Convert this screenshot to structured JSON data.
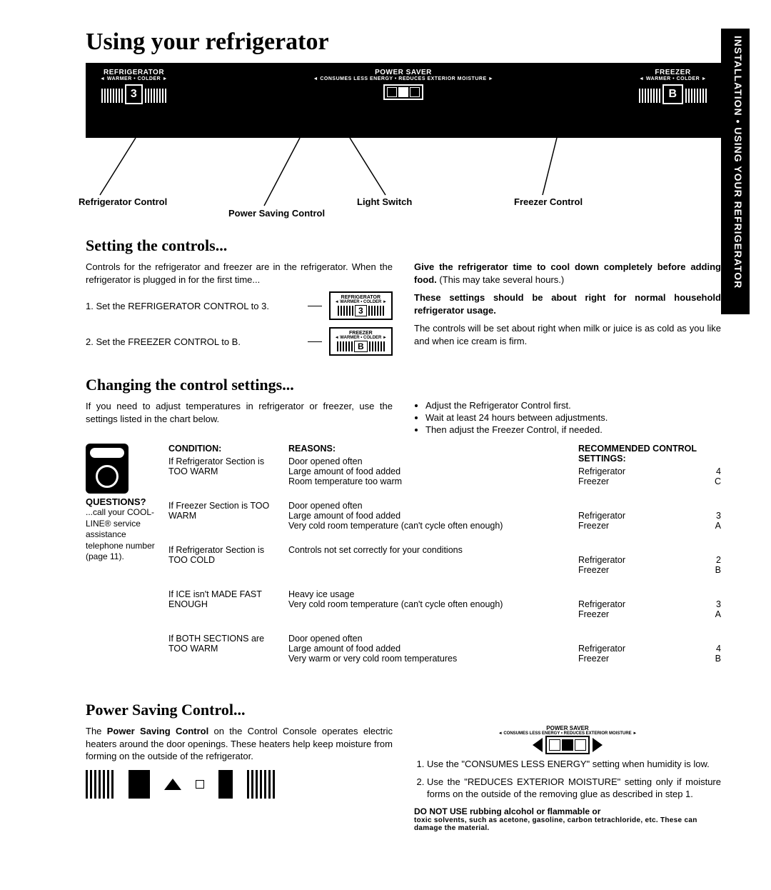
{
  "sideTab": "INSTALLATION • USING YOUR REFRIGERATOR",
  "title": "Using your refrigerator",
  "panel": {
    "refrig": {
      "main": "REFRIGERATOR",
      "sub": "◄ WARMER  •  COLDER ►",
      "num": "3"
    },
    "power": {
      "main": "POWER  SAVER",
      "sub": "◄ CONSUMES LESS ENERGY  •  REDUCES EXTERIOR MOISTURE ►"
    },
    "freezer": {
      "main": "FREEZER",
      "sub": "◄ WARMER  •  COLDER ►",
      "num": "B"
    }
  },
  "callouts": {
    "refrig": "Refrigerator Control",
    "power": "Power Saving Control",
    "light": "Light Switch",
    "freezer": "Freezer Control"
  },
  "setting": {
    "heading": "Setting the controls...",
    "intro": "Controls for the refrigerator and freezer are in the refrigerator. When the refrigerator is plugged in for the first time...",
    "step1": "1. Set the REFRIGERA­TOR CONTROL to 3.",
    "step2": "2. Set the FREEZER CONTROL to B.",
    "mini1": {
      "label": "REFRIGERATOR",
      "sub": "◄ WARMER • COLDER ►",
      "num": "3"
    },
    "mini2": {
      "label": "FREEZER",
      "sub": "◄ WARMER • COLDER ►",
      "num": "B"
    },
    "right1": "Give the refrigerator time to cool down com­pletely before adding food. (This may take sev­eral hours.)",
    "right2": "These settings should be about right for normal household refrigerator usage.",
    "right3": "The controls will be set about right when milk or juice is as cold as you like and when ice cream is firm."
  },
  "changing": {
    "heading": "Changing the control settings...",
    "intro": "If you need to adjust temperatures in refrigerator or freezer, use the settings listed in the chart below.",
    "bullets": [
      "Adjust the Refrigerator Control first.",
      "Wait at least 24 hours between adjustments.",
      "Then adjust the Freezer Control, if needed."
    ]
  },
  "chart": {
    "headCondition": "CONDITION:",
    "headReasons": "REASONS:",
    "headRec": "RECOMMENDED CONTROL SETTINGS:",
    "questionsHead": "QUESTIONS?",
    "questionsBody": "...call your COOL-LINE® service assistance telephone number (page 11).",
    "rows": [
      {
        "cond": "If Refrigerator Section is TOO WARM",
        "reason": "Door opened often\nLarge amount of food added\nRoom temperature too warm",
        "ref": "4",
        "frz": "C"
      },
      {
        "cond": "If Freezer Section is TOO WARM",
        "reason": "Door opened often\nLarge amount of food added\nVery cold room temperature (can't cycle often enough)",
        "ref": "3",
        "frz": "A"
      },
      {
        "cond": "If Refrigerator Section is TOO COLD",
        "reason": "Controls not set correctly for your conditions",
        "ref": "2",
        "frz": "B"
      },
      {
        "cond": "If ICE isn't MADE FAST ENOUGH",
        "reason": "Heavy ice usage\nVery cold room temperature (can't cycle often enough)",
        "ref": "3",
        "frz": "A"
      },
      {
        "cond": "If BOTH SECTIONS are TOO WARM",
        "reason": "Door opened often\nLarge amount of food added\nVery warm or very cold room temperatures",
        "ref": "4",
        "frz": "B"
      }
    ],
    "recLabelRef": "Refrigerator",
    "recLabelFrz": "Freezer"
  },
  "power": {
    "heading": "Power Saving Control...",
    "left": "The Power Saving Control on the Control Con­sole operates electric heaters around the door openings. These heaters help keep moisture from forming on the outside of the refrigerator.",
    "switchLabel": "POWER  SAVER",
    "switchSub": "◄ CONSUMES LESS ENERGY  •  REDUCES EXTERIOR MOISTURE ►",
    "list": [
      "Use the \"CONSUMES LESS ENERGY\" setting when humidity is low.",
      "Use the \"REDUCES EXTERIOR MOISTURE\" setting only if moisture forms on the outside of the removing glue as described in step 1."
    ],
    "warn": "DO NOT USE rubbing alcohol or flammable or",
    "fine": "toxic solvents, such as acetone, gasoline, car­bon tetrachloride, etc. These can damage the material."
  }
}
